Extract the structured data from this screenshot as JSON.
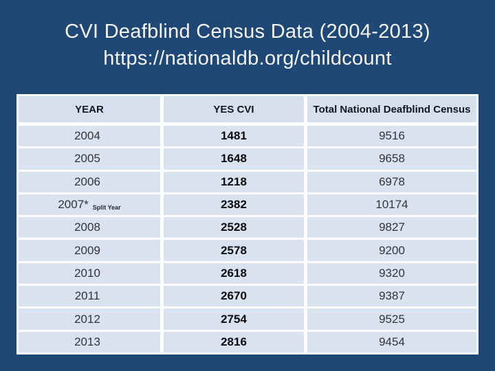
{
  "slide": {
    "title_line1": "CVI Deafblind Census Data (2004-2013)",
    "title_line2": "https://nationaldb.org/childcount",
    "colors": {
      "background": "#1F4876",
      "cell_background": "#D9E2EF",
      "header_background": "#D6DFEC",
      "gridline": "#FFFFFF",
      "title_text": "#F5F5F1"
    }
  },
  "table": {
    "headers": {
      "year": "YEAR",
      "cvi": "YES CVI",
      "total": "Total National Deafblind Census"
    },
    "rows": [
      {
        "year": "2004",
        "year_note": "",
        "cvi": "1481",
        "total": "9516"
      },
      {
        "year": "2005",
        "year_note": "",
        "cvi": "1648",
        "total": "9658"
      },
      {
        "year": "2006",
        "year_note": "",
        "cvi": "1218",
        "total": "6978"
      },
      {
        "year": "2007*",
        "year_note": "Split Year",
        "cvi": "2382",
        "total": "10174"
      },
      {
        "year": "2008",
        "year_note": "",
        "cvi": "2528",
        "total": "9827"
      },
      {
        "year": "2009",
        "year_note": "",
        "cvi": "2578",
        "total": "9200"
      },
      {
        "year": "2010",
        "year_note": "",
        "cvi": "2618",
        "total": "9320"
      },
      {
        "year": "2011",
        "year_note": "",
        "cvi": "2670",
        "total": "9387"
      },
      {
        "year": "2012",
        "year_note": "",
        "cvi": "2754",
        "total": "9525"
      },
      {
        "year": "2013",
        "year_note": "",
        "cvi": "2816",
        "total": "9454"
      }
    ]
  },
  "chart_data": {
    "type": "table",
    "title": "CVI Deafblind Census Data (2004-2013)",
    "subtitle": "https://nationaldb.org/childcount",
    "columns": [
      "YEAR",
      "YES CVI",
      "Total National Deafblind Census"
    ],
    "rows": [
      [
        "2004",
        1481,
        9516
      ],
      [
        "2005",
        1648,
        9658
      ],
      [
        "2006",
        1218,
        6978
      ],
      [
        "2007* Split Year",
        2382,
        10174
      ],
      [
        "2008",
        2528,
        9827
      ],
      [
        "2009",
        2578,
        9200
      ],
      [
        "2010",
        2618,
        9320
      ],
      [
        "2011",
        2670,
        9387
      ],
      [
        "2012",
        2754,
        9525
      ],
      [
        "2013",
        2816,
        9454
      ]
    ]
  }
}
